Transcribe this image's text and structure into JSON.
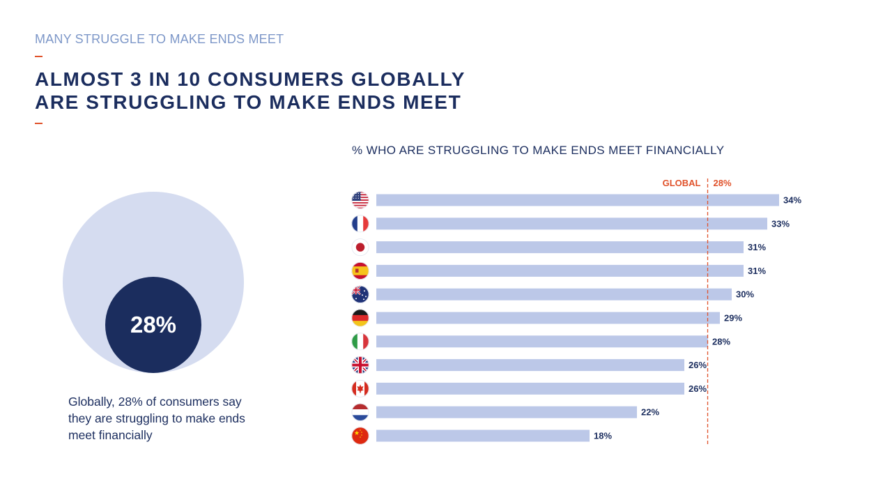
{
  "header": {
    "kicker": "MANY STRUGGLE TO MAKE ENDS MEET",
    "title_line1": "ALMOST 3 IN 10 CONSUMERS GLOBALLY",
    "title_line2": "ARE STRUGGLING TO MAKE ENDS MEET"
  },
  "summary": {
    "stat": "28%",
    "caption": "Globally, 28% of consumers say they are struggling to make ends meet financially"
  },
  "colors": {
    "accent": "#e0522b",
    "navy": "#1b2d5e",
    "bar": "#bcc8e8",
    "circle_light": "#d5dcf0"
  },
  "chart_data": {
    "type": "bar",
    "orientation": "horizontal",
    "title": "% WHO ARE STRUGGLING TO MAKE ENDS MEET FINANCIALLY",
    "categories": [
      "us-flag-icon",
      "france-flag-icon",
      "japan-flag-icon",
      "spain-flag-icon",
      "australia-flag-icon",
      "germany-flag-icon",
      "italy-flag-icon",
      "uk-flag-icon",
      "canada-flag-icon",
      "netherlands-flag-icon",
      "china-flag-icon"
    ],
    "values": [
      34,
      33,
      31,
      31,
      30,
      29,
      28,
      26,
      26,
      22,
      18
    ],
    "labels": [
      "34%",
      "33%",
      "31%",
      "31%",
      "30%",
      "29%",
      "28%",
      "26%",
      "26%",
      "22%",
      "18%"
    ],
    "reference": {
      "label": "GLOBAL",
      "value": 28,
      "value_label": "28%"
    },
    "xlim": [
      0,
      34
    ],
    "grid": false,
    "legend": "none"
  }
}
